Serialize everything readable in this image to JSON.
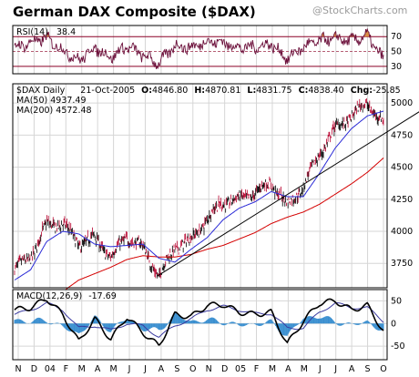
{
  "title": "German DAX Composite ($DAX)",
  "credit": "@StockCharts.com",
  "colors": {
    "price_up": "#000000",
    "price_down": "#b8002d",
    "ma50": "#2a2ad6",
    "ma200": "#d40000",
    "rsi": "#6b0f3a",
    "rsi_fill": "#d98a40",
    "macd": "#000000",
    "signal": "#3a3aa0",
    "histogram": "#3a8fd0",
    "trendline": "#000000",
    "rsi_level": "#8b0026"
  },
  "rsi_panel": {
    "label": "RSI(14)",
    "value": "38.4",
    "ticks": [
      "70",
      "50",
      "30"
    ]
  },
  "price_panel": {
    "symbol_label": "$DAX Daily",
    "date": "21-Oct-2005",
    "open_label": "O:",
    "open": "4846.80",
    "high_label": "H:",
    "high": "4870.81",
    "low_label": "L:",
    "low": "4831.75",
    "close_label": "C:",
    "close": "4838.40",
    "chg_label": "Chg:",
    "chg": "-25.85",
    "ma50_label": "MA(50)",
    "ma50_value": "4937.49",
    "ma200_label": "MA(200)",
    "ma200_value": "4572.48",
    "ticks": [
      "5000",
      "4750",
      "4500",
      "4250",
      "4000",
      "3750"
    ]
  },
  "macd_panel": {
    "label": "MACD(12,26,9)",
    "value": "-17.69",
    "ticks": [
      "50",
      "0",
      "-50"
    ]
  },
  "x_axis": {
    "labels": [
      "N",
      "D",
      "04",
      "F",
      "M",
      "A",
      "M",
      "J",
      "J",
      "A",
      "S",
      "O",
      "N",
      "D",
      "05",
      "F",
      "M",
      "A",
      "M",
      "J",
      "J",
      "A",
      "S",
      "O"
    ]
  },
  "chart_data": {
    "type": "line",
    "title": "German DAX Composite ($DAX)",
    "x_range": [
      "Nov 2003",
      "Oct 2005"
    ],
    "price": {
      "ylim": [
        3560,
        5150
      ],
      "months": [
        "Nov 03",
        "Dec 03",
        "Jan 04",
        "Feb 04",
        "Mar 04",
        "Apr 04",
        "May 04",
        "Jun 04",
        "Jul 04",
        "Aug 04",
        "Sep 04",
        "Oct 04",
        "Nov 04",
        "Dec 04",
        "Jan 05",
        "Feb 05",
        "Mar 05",
        "Apr 05",
        "May 05",
        "Jun 05",
        "Jul 05",
        "Aug 05",
        "Sep 05",
        "Oct 05"
      ],
      "close": [
        3700,
        3800,
        4050,
        4060,
        3900,
        3950,
        3800,
        3960,
        3870,
        3650,
        3880,
        3930,
        4100,
        4230,
        4250,
        4300,
        4380,
        4200,
        4350,
        4600,
        4800,
        4900,
        5000,
        4840
      ],
      "ma50": [
        3620,
        3700,
        3920,
        4000,
        3980,
        3900,
        3880,
        3890,
        3900,
        3790,
        3760,
        3860,
        3950,
        4090,
        4180,
        4230,
        4310,
        4270,
        4270,
        4450,
        4650,
        4800,
        4900,
        4937
      ],
      "ma200": [
        3200,
        3300,
        3420,
        3530,
        3620,
        3670,
        3720,
        3780,
        3810,
        3800,
        3800,
        3820,
        3860,
        3890,
        3940,
        3990,
        4060,
        4110,
        4150,
        4210,
        4290,
        4370,
        4460,
        4572
      ],
      "trendline": [
        [
          "Aug 04",
          3650
        ],
        [
          "Oct 05",
          4720
        ]
      ]
    },
    "rsi": {
      "ylim": [
        20,
        85
      ],
      "levels": [
        70,
        30
      ],
      "values": [
        55,
        62,
        68,
        52,
        38,
        55,
        42,
        57,
        45,
        34,
        58,
        55,
        64,
        62,
        55,
        56,
        60,
        40,
        56,
        64,
        68,
        64,
        72,
        38.4
      ]
    },
    "macd": {
      "ylim": [
        -80,
        75
      ],
      "macd": [
        30,
        35,
        55,
        20,
        -40,
        10,
        -35,
        15,
        -20,
        -50,
        20,
        15,
        40,
        42,
        25,
        20,
        25,
        -45,
        5,
        45,
        50,
        30,
        40,
        -17.69
      ],
      "signal": [
        20,
        30,
        45,
        30,
        -10,
        -5,
        -15,
        0,
        -5,
        -30,
        -5,
        10,
        30,
        38,
        30,
        22,
        22,
        -10,
        -10,
        25,
        45,
        35,
        35,
        5
      ]
    }
  }
}
